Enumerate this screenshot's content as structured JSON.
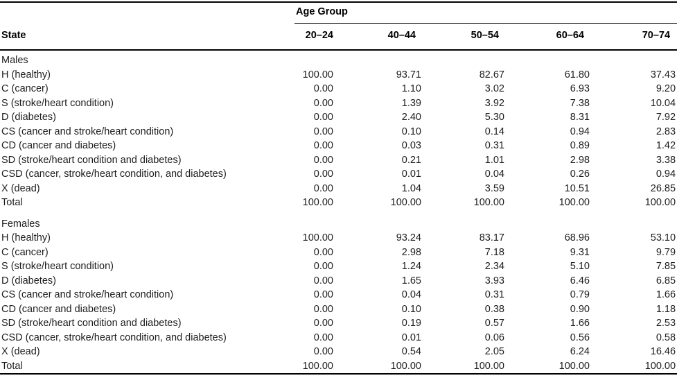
{
  "table": {
    "col_group_header": "Age Group",
    "state_header": "State",
    "age_columns": [
      "20–24",
      "40–44",
      "50–54",
      "60–64",
      "70–74"
    ],
    "sections": [
      {
        "label": "Males",
        "rows": [
          {
            "state": "H (healthy)",
            "values": [
              "100.00",
              "93.71",
              "82.67",
              "61.80",
              "37.43"
            ]
          },
          {
            "state": "C (cancer)",
            "values": [
              "0.00",
              "1.10",
              "3.02",
              "6.93",
              "9.20"
            ]
          },
          {
            "state": "S (stroke/heart condition)",
            "values": [
              "0.00",
              "1.39",
              "3.92",
              "7.38",
              "10.04"
            ]
          },
          {
            "state": "D (diabetes)",
            "values": [
              "0.00",
              "2.40",
              "5.30",
              "8.31",
              "7.92"
            ]
          },
          {
            "state": "CS (cancer and stroke/heart condition)",
            "values": [
              "0.00",
              "0.10",
              "0.14",
              "0.94",
              "2.83"
            ]
          },
          {
            "state": "CD (cancer and diabetes)",
            "values": [
              "0.00",
              "0.03",
              "0.31",
              "0.89",
              "1.42"
            ]
          },
          {
            "state": "SD (stroke/heart condition and diabetes)",
            "values": [
              "0.00",
              "0.21",
              "1.01",
              "2.98",
              "3.38"
            ]
          },
          {
            "state": "CSD (cancer, stroke/heart condition, and diabetes)",
            "values": [
              "0.00",
              "0.01",
              "0.04",
              "0.26",
              "0.94"
            ]
          },
          {
            "state": "X (dead)",
            "values": [
              "0.00",
              "1.04",
              "3.59",
              "10.51",
              "26.85"
            ]
          },
          {
            "state": "Total",
            "values": [
              "100.00",
              "100.00",
              "100.00",
              "100.00",
              "100.00"
            ]
          }
        ]
      },
      {
        "label": "Females",
        "rows": [
          {
            "state": "H (healthy)",
            "values": [
              "100.00",
              "93.24",
              "83.17",
              "68.96",
              "53.10"
            ]
          },
          {
            "state": "C (cancer)",
            "values": [
              "0.00",
              "2.98",
              "7.18",
              "9.31",
              "9.79"
            ]
          },
          {
            "state": "S (stroke/heart condition)",
            "values": [
              "0.00",
              "1.24",
              "2.34",
              "5.10",
              "7.85"
            ]
          },
          {
            "state": "D (diabetes)",
            "values": [
              "0.00",
              "1.65",
              "3.93",
              "6.46",
              "6.85"
            ]
          },
          {
            "state": "CS (cancer and stroke/heart condition)",
            "values": [
              "0.00",
              "0.04",
              "0.31",
              "0.79",
              "1.66"
            ]
          },
          {
            "state": "CD (cancer and diabetes)",
            "values": [
              "0.00",
              "0.10",
              "0.38",
              "0.90",
              "1.18"
            ]
          },
          {
            "state": "SD (stroke/heart condition and diabetes)",
            "values": [
              "0.00",
              "0.19",
              "0.57",
              "1.66",
              "2.53"
            ]
          },
          {
            "state": "CSD (cancer, stroke/heart condition, and diabetes)",
            "values": [
              "0.00",
              "0.01",
              "0.06",
              "0.56",
              "0.58"
            ]
          },
          {
            "state": "X (dead)",
            "values": [
              "0.00",
              "0.54",
              "2.05",
              "6.24",
              "16.46"
            ]
          },
          {
            "state": "Total",
            "values": [
              "100.00",
              "100.00",
              "100.00",
              "100.00",
              "100.00"
            ]
          }
        ]
      }
    ]
  }
}
